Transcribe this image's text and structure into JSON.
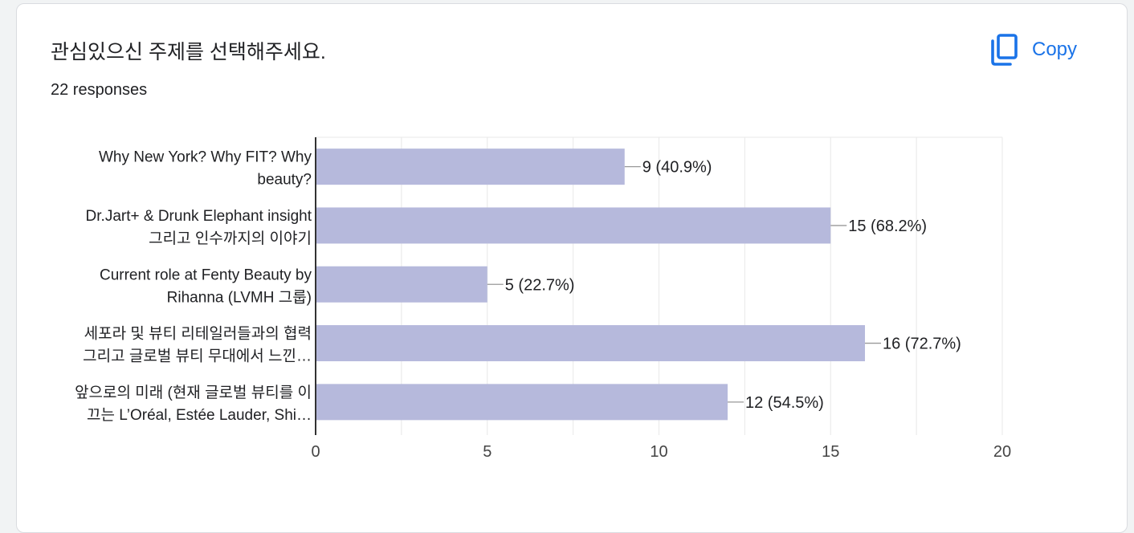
{
  "header": {
    "title": "관심있으신 주제를 선택해주세요.",
    "responses": "22 responses",
    "copy_label": "Copy",
    "copy_icon": "copy-icon"
  },
  "colors": {
    "bar": "#b6b9dc",
    "accent": "#1a73e8",
    "text": "#202124",
    "grid": "#e8e8e8",
    "axis": "#333333",
    "leader": "#999999"
  },
  "chart_data": {
    "type": "bar",
    "orientation": "horizontal",
    "categories": [
      [
        "Why New York? Why FIT? Why",
        "beauty?"
      ],
      [
        "Dr.Jart+ & Drunk Elephant insight",
        "그리고 인수까지의 이야기"
      ],
      [
        "Current role at Fenty Beauty by",
        "Rihanna (LVMH 그룹)"
      ],
      [
        "세포라 및 뷰티 리테일러들과의 협력",
        "그리고 글로벌 뷰티 무대에서 느낀…"
      ],
      [
        "앞으로의 미래 (현재 글로벌 뷰티를 이",
        "끄는 L’Oréal, Estée Lauder, Shi…"
      ]
    ],
    "values": [
      9,
      15,
      5,
      16,
      12
    ],
    "value_labels": [
      "9 (40.9%)",
      "15 (68.2%)",
      "5 (22.7%)",
      "16 (72.7%)",
      "12 (54.5%)"
    ],
    "xlim": [
      0,
      20
    ],
    "xticks": [
      0,
      5,
      10,
      15,
      20
    ],
    "grid": true
  }
}
